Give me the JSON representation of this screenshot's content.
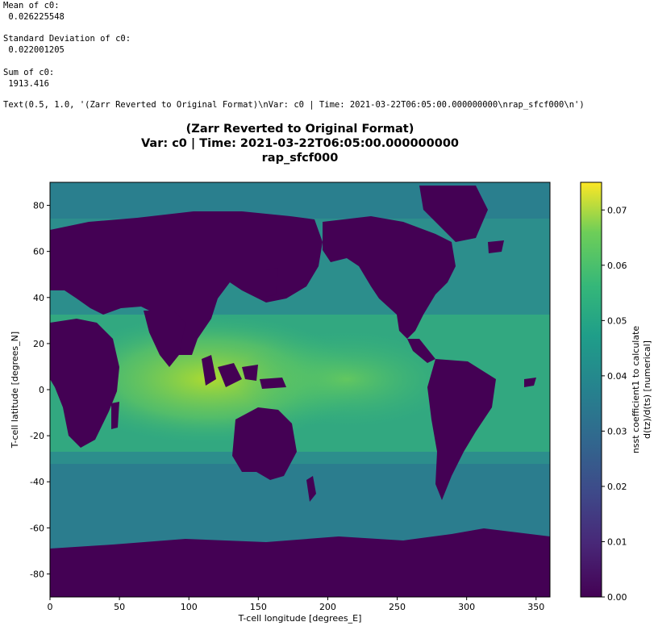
{
  "output": {
    "mean_label": "Mean of c0:",
    "mean_value": " 0.026225548",
    "std_label": "Standard Deviation of c0:",
    "std_value": " 0.022001205",
    "sum_label": "Sum of c0:",
    "sum_value": " 1913.416",
    "repr": "Text(0.5, 1.0, '(Zarr Reverted to Original Format)\\nVar: c0 | Time: 2021-03-22T06:05:00.000000000\\nrap_sfcf000\\n')"
  },
  "chart_data": {
    "type": "heatmap",
    "title_lines": [
      "(Zarr Reverted to Original Format)",
      "Var: c0 | Time: 2021-03-22T06:05:00.000000000",
      "rap_sfcf000"
    ],
    "xlabel": "T-cell longitude [degrees_E]",
    "ylabel": "T-cell latitude [degrees_N]",
    "xlim": [
      0,
      360
    ],
    "ylim": [
      -90,
      90
    ],
    "xticks": [
      "0",
      "50",
      "100",
      "150",
      "200",
      "250",
      "300",
      "350"
    ],
    "yticks": [
      "-80",
      "-60",
      "-40",
      "-20",
      "0",
      "20",
      "40",
      "60",
      "80"
    ],
    "colorbar": {
      "label_lines": [
        "nsst coefficient1 to calculate",
        "d(tz)/d(ts) [numerical]"
      ],
      "range": [
        0.0,
        0.075
      ],
      "ticks": [
        "0.00",
        "0.01",
        "0.02",
        "0.03",
        "0.04",
        "0.05",
        "0.06",
        "0.07"
      ],
      "colormap": "viridis"
    },
    "field_description_values": {
      "land_value": 0.0,
      "mean": 0.026225548,
      "std": 0.022001205,
      "sum": 1913.416
    }
  }
}
